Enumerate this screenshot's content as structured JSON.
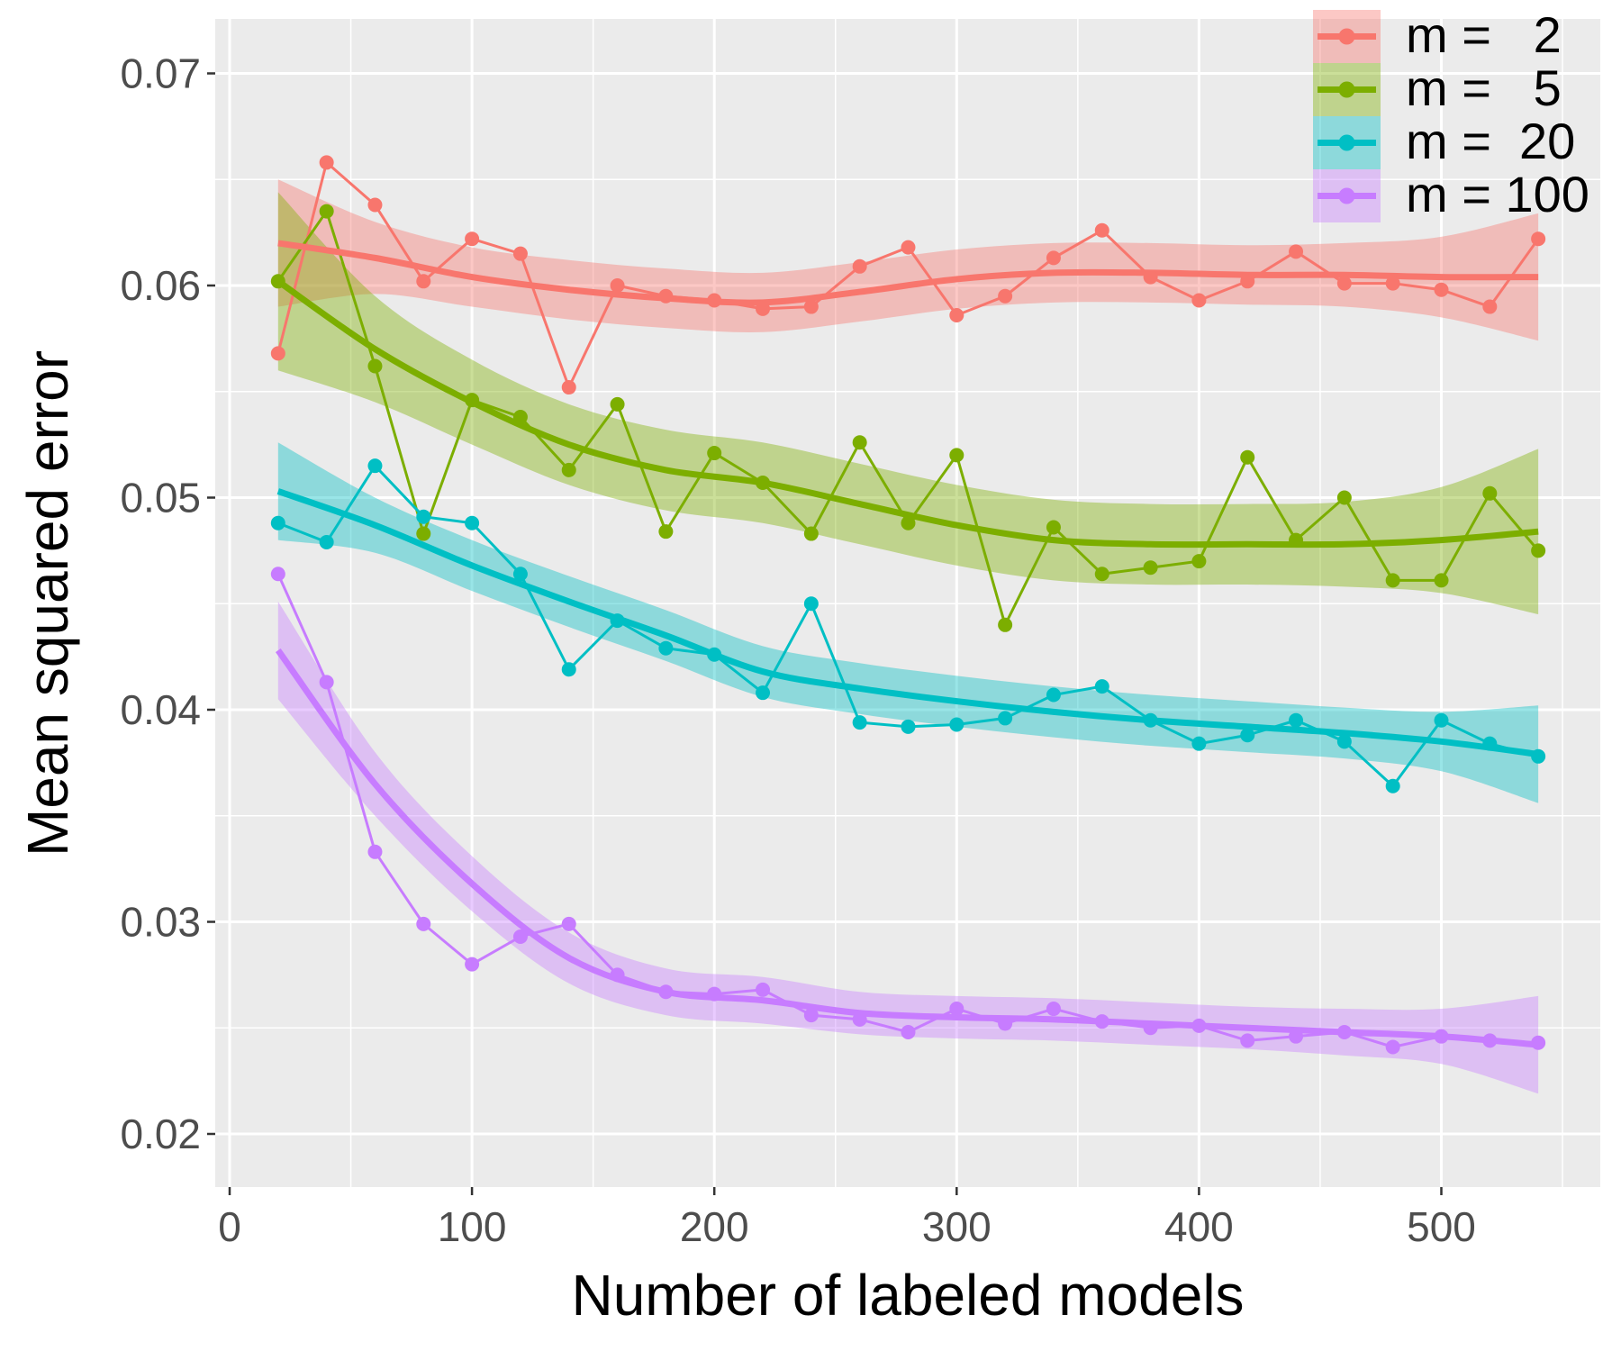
{
  "chart_data": {
    "type": "line",
    "xlabel": "Number of labeled models",
    "ylabel": "Mean squared error",
    "xlim": [
      -5,
      555
    ],
    "ylim": [
      0.0183,
      0.0725
    ],
    "x_ticks": [
      0,
      100,
      200,
      300,
      400,
      500
    ],
    "x_tick_labels": [
      "0",
      "100",
      "200",
      "300",
      "400",
      "500"
    ],
    "y_ticks": [
      0.02,
      0.03,
      0.04,
      0.05,
      0.06,
      0.07
    ],
    "y_tick_labels": [
      "0.02",
      "0.03",
      "0.04",
      "0.05",
      "0.06",
      "0.07"
    ],
    "grid": true,
    "background": "#EBEBEB",
    "legend_position": "top-right",
    "x": [
      20,
      40,
      60,
      80,
      100,
      120,
      140,
      160,
      180,
      200,
      220,
      240,
      260,
      280,
      300,
      320,
      340,
      360,
      380,
      400,
      420,
      440,
      460,
      480,
      500,
      520,
      540
    ],
    "fit_x": [
      20,
      60,
      100,
      140,
      180,
      220,
      260,
      300,
      340,
      380,
      420,
      460,
      500,
      540
    ],
    "series": [
      {
        "name": "m =   2",
        "color": "#F8766D",
        "values": [
          0.0568,
          0.0658,
          0.0638,
          0.0602,
          0.0622,
          0.0615,
          0.0552,
          0.06,
          0.0595,
          0.0593,
          0.0589,
          0.059,
          0.0609,
          0.0618,
          0.0586,
          0.0595,
          0.0613,
          0.0626,
          0.0604,
          0.0593,
          0.0602,
          0.0616,
          0.0601,
          0.0601,
          0.0598,
          0.059,
          0.0622
        ],
        "fit": [
          0.062,
          0.0613,
          0.0604,
          0.0598,
          0.0594,
          0.0592,
          0.0597,
          0.0603,
          0.0606,
          0.0606,
          0.0605,
          0.0605,
          0.0604,
          0.0604
        ],
        "fit_halfwidth": [
          0.003,
          0.0017,
          0.0014,
          0.0014,
          0.0014,
          0.0014,
          0.0014,
          0.0014,
          0.0014,
          0.0014,
          0.0014,
          0.0015,
          0.0019,
          0.003
        ]
      },
      {
        "name": "m =   5",
        "color": "#7CAE00",
        "values": [
          0.0602,
          0.0635,
          0.0562,
          0.0483,
          0.0546,
          0.0538,
          0.0513,
          0.0544,
          0.0484,
          0.0521,
          0.0507,
          0.0483,
          0.0526,
          0.0488,
          0.052,
          0.044,
          0.0486,
          0.0464,
          0.0467,
          0.047,
          0.0519,
          0.048,
          0.05,
          0.0461,
          0.0461,
          0.0502,
          0.0475
        ],
        "fit": [
          0.0602,
          0.057,
          0.0545,
          0.0525,
          0.0513,
          0.0507,
          0.0497,
          0.0487,
          0.048,
          0.0478,
          0.0478,
          0.0478,
          0.048,
          0.0484
        ],
        "fit_halfwidth": [
          0.0042,
          0.0025,
          0.002,
          0.0019,
          0.0019,
          0.0019,
          0.0019,
          0.0019,
          0.0019,
          0.0019,
          0.0019,
          0.002,
          0.0025,
          0.0039
        ]
      },
      {
        "name": "m =  20",
        "color": "#00BFC4",
        "values": [
          0.0488,
          0.0479,
          0.0515,
          0.0491,
          0.0488,
          0.0464,
          0.0419,
          0.0442,
          0.0429,
          0.0426,
          0.0408,
          0.045,
          0.0394,
          0.0392,
          0.0393,
          0.0396,
          0.0407,
          0.0411,
          0.0395,
          0.0384,
          0.0388,
          0.0395,
          0.0385,
          0.0364,
          0.0395,
          0.0384,
          0.0378
        ],
        "fit": [
          0.0503,
          0.0487,
          0.0468,
          0.0451,
          0.0435,
          0.0418,
          0.041,
          0.0404,
          0.0399,
          0.0395,
          0.0392,
          0.0389,
          0.0385,
          0.0379
        ],
        "fit_halfwidth": [
          0.0023,
          0.0013,
          0.0012,
          0.0012,
          0.0012,
          0.0012,
          0.0012,
          0.0012,
          0.0012,
          0.0012,
          0.0012,
          0.0012,
          0.0014,
          0.0023
        ]
      },
      {
        "name": "m = 100",
        "color": "#C77CFF",
        "values": [
          0.0464,
          0.0413,
          0.0333,
          0.0299,
          0.028,
          0.0293,
          0.0299,
          0.0275,
          0.0267,
          0.0266,
          0.0268,
          0.0256,
          0.0254,
          0.0248,
          0.0259,
          0.0252,
          0.0259,
          0.0253,
          0.025,
          0.0251,
          0.0244,
          0.0246,
          0.0248,
          0.0241,
          0.0246,
          0.0244,
          0.0243
        ],
        "fit": [
          0.0428,
          0.0365,
          0.0318,
          0.0283,
          0.0267,
          0.0263,
          0.0257,
          0.0255,
          0.0254,
          0.0252,
          0.025,
          0.0248,
          0.0246,
          0.0242
        ],
        "fit_halfwidth": [
          0.0023,
          0.0015,
          0.0013,
          0.0012,
          0.0011,
          0.0011,
          0.001,
          0.001,
          0.001,
          0.001,
          0.001,
          0.0011,
          0.0013,
          0.0023
        ]
      }
    ]
  }
}
